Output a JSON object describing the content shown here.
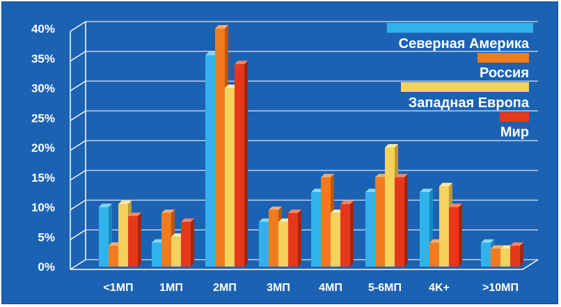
{
  "chart_data": {
    "type": "bar",
    "categories": [
      "<1МП",
      "1МП",
      "2МП",
      "3МП",
      "4МП",
      "5-6МП",
      "4K+",
      ">10МП"
    ],
    "series": [
      {
        "name": "Северная Америка",
        "values": [
          10,
          4,
          35.5,
          7.5,
          12.5,
          12.5,
          12.5,
          4
        ]
      },
      {
        "name": "Россия",
        "values": [
          3.5,
          9,
          40,
          9.5,
          15,
          15,
          4,
          3
        ]
      },
      {
        "name": "Западная Европа",
        "values": [
          10.5,
          5,
          30,
          7.5,
          9,
          20,
          13.5,
          3
        ]
      },
      {
        "name": "Мир",
        "values": [
          8.5,
          7.5,
          34,
          9,
          10.5,
          15,
          10,
          3.5
        ]
      }
    ],
    "ylim": [
      0,
      40
    ],
    "yticks": [
      "0%",
      "5%",
      "10%",
      "15%",
      "20%",
      "25%",
      "30%",
      "35%",
      "40%"
    ],
    "legend_position": "top-right",
    "grid": true,
    "colors": {
      "background": "#1c62b2",
      "grid": "#ffffff",
      "series": [
        "#2fb3ea",
        "#f07c1f",
        "#f5d15e",
        "#e5381b"
      ],
      "series_top": [
        "#86d6f6",
        "#f9ad6a",
        "#faeaa8",
        "#f38766"
      ],
      "series_side": [
        "#1a86bd",
        "#b9570f",
        "#b99939",
        "#a62511"
      ]
    }
  }
}
